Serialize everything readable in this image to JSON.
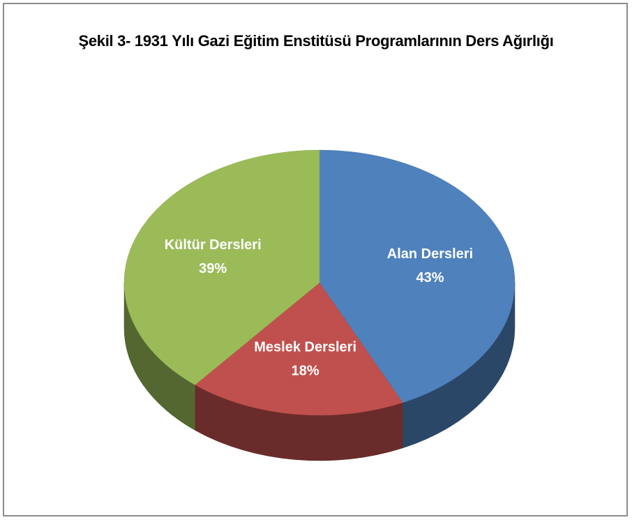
{
  "chart_data": {
    "type": "pie",
    "title": "Şekil 3- 1931 Yılı Gazi Eğitim Enstitüsü Programlarının Ders Ağırlığı",
    "categories": [
      "Alan Dersleri",
      "Meslek Dersleri",
      "Kültür Dersleri"
    ],
    "values": [
      43,
      18,
      39
    ],
    "value_labels": [
      "43%",
      "18%",
      "39%"
    ],
    "colors": [
      "#4f81bd",
      "#c0504d",
      "#9bbb59"
    ]
  }
}
